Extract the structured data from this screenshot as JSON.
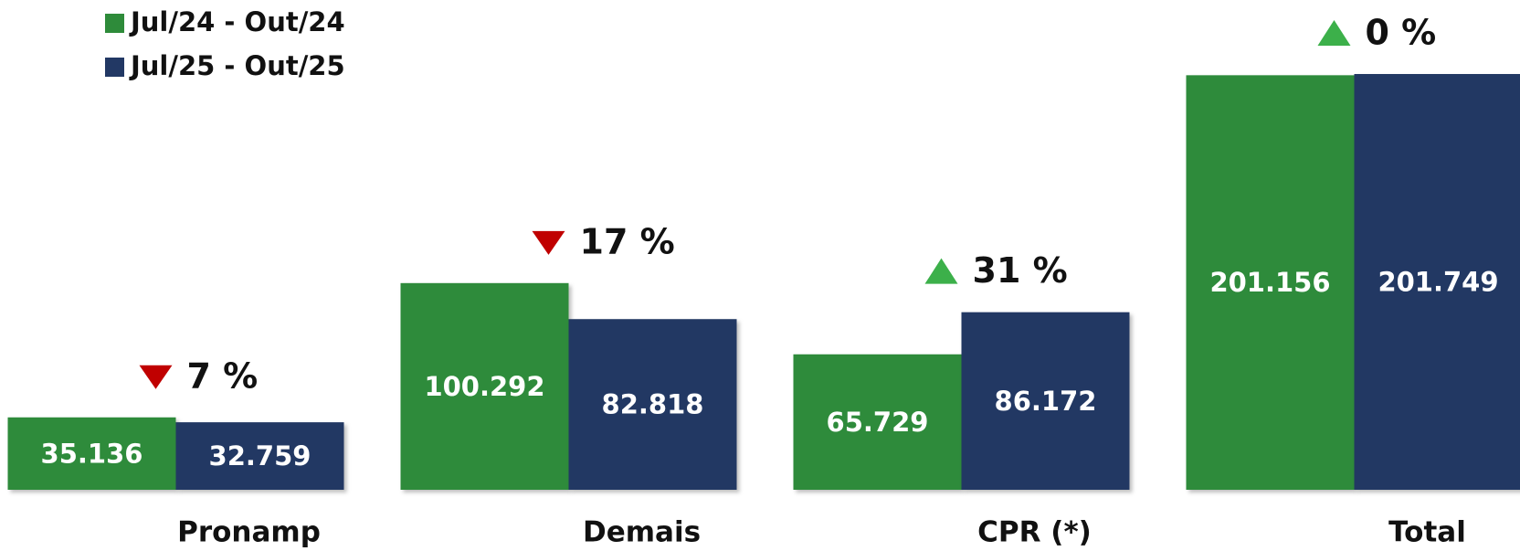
{
  "chart_data": {
    "type": "bar",
    "categories": [
      "Pronamp",
      "Demais",
      "CPR (*)",
      "Total"
    ],
    "series": [
      {
        "name": "Jul/24 - Out/24",
        "color": "#2e8b3a",
        "values": [
          35136,
          100292,
          65729,
          201156
        ],
        "value_labels": [
          "35.136",
          "100.292",
          "65.729",
          "201.156"
        ]
      },
      {
        "name": "Jul/25 - Out/25",
        "color": "#223864",
        "values": [
          32759,
          82818,
          86172,
          201749
        ],
        "value_labels": [
          "32.759",
          "82.818",
          "86.172",
          "201.749"
        ]
      }
    ],
    "changes": [
      {
        "label": "7 %",
        "direction": "down"
      },
      {
        "label": "17 %",
        "direction": "down"
      },
      {
        "label": "31 %",
        "direction": "up"
      },
      {
        "label": "0 %",
        "direction": "up"
      }
    ],
    "up_color": "#3cb04a",
    "down_color": "#c00000",
    "legend": "top-left"
  }
}
